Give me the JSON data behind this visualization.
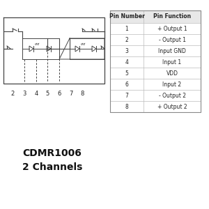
{
  "title1": "CDMR1006",
  "title2": "2 Channels",
  "title_fontsize": 10,
  "bg_color": "#ffffff",
  "pin_numbers": [
    1,
    2,
    3,
    4,
    5,
    6,
    7,
    8
  ],
  "pin_functions": [
    "+ Output 1",
    "- Output 1",
    "Input GND",
    "Input 1",
    "VDD",
    "Input 2",
    "- Output 2",
    "+ Output 2"
  ],
  "table_header": [
    "Pin Number",
    "Pin Function"
  ],
  "line_color": "#444444",
  "text_color": "#222222",
  "table_line_color": "#bbbbbb",
  "table_header_bg": "#e8e8e8"
}
